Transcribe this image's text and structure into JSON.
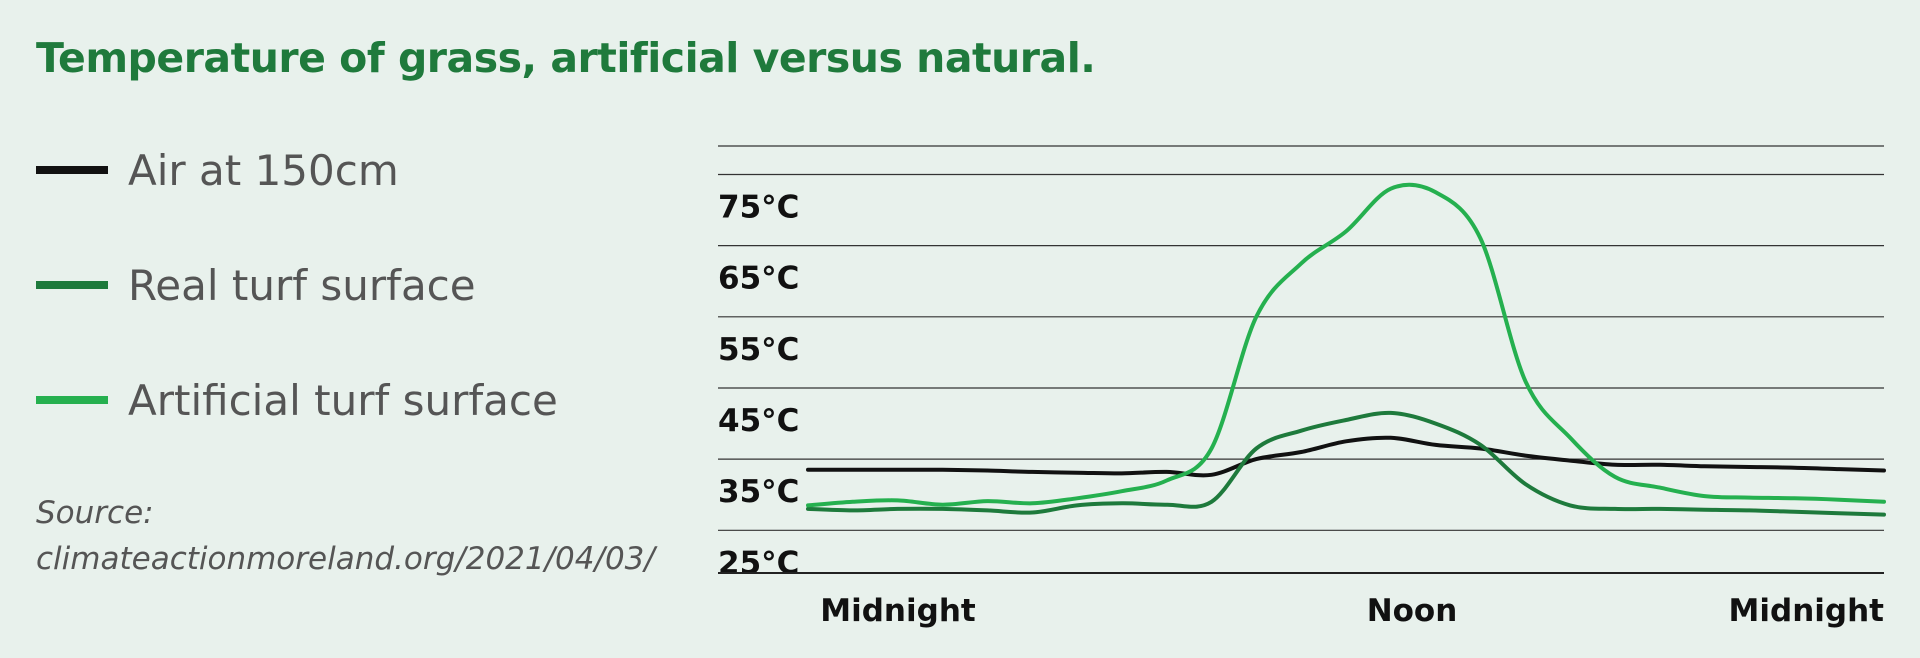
{
  "title": "Temperature of grass, artificial versus natural.",
  "legend": [
    {
      "label": "Air at 150cm",
      "color": "#111111"
    },
    {
      "label": "Real turf surface",
      "color": "#1e7a3c"
    },
    {
      "label": "Artificial turf surface",
      "color": "#25b04f"
    }
  ],
  "source": {
    "line1": "Source:",
    "line2": "climateactionmoreland.org/2021/04/03/"
  },
  "chart_data": {
    "type": "line",
    "xlabel": "",
    "ylabel": "",
    "x_tick_labels": [
      "Midnight",
      "Noon",
      "Midnight"
    ],
    "y_tick_labels": [
      "25°C",
      "35°C",
      "45°C",
      "55°C",
      "65°C",
      "75°C"
    ],
    "y_ticks": [
      25,
      35,
      45,
      55,
      65,
      75
    ],
    "xlim": [
      0,
      24
    ],
    "ylim": [
      19,
      79
    ],
    "grid": true,
    "legend_position": "left",
    "series": [
      {
        "name": "Air at 150cm",
        "color": "#111111",
        "x": [
          0,
          1,
          2,
          3,
          4,
          5,
          6,
          7,
          8,
          9,
          10,
          11,
          12,
          13,
          14,
          15,
          16,
          17,
          18,
          19,
          20,
          21,
          22,
          23,
          24
        ],
        "y": [
          33.5,
          33.5,
          33.5,
          33.5,
          33.4,
          33.2,
          33.1,
          33.0,
          33.2,
          32.8,
          35.0,
          36.0,
          37.5,
          38.0,
          37.0,
          36.5,
          35.5,
          34.8,
          34.2,
          34.2,
          34.0,
          33.9,
          33.8,
          33.6,
          33.4
        ]
      },
      {
        "name": "Real turf surface",
        "color": "#1e7a3c",
        "x": [
          0,
          1,
          2,
          3,
          4,
          5,
          6,
          7,
          8,
          9,
          10,
          11,
          12,
          13,
          14,
          15,
          16,
          17,
          18,
          19,
          20,
          21,
          22,
          23,
          24
        ],
        "y": [
          28.0,
          27.8,
          28.0,
          28.0,
          27.8,
          27.5,
          28.5,
          28.8,
          28.6,
          29.0,
          36.5,
          39.0,
          40.5,
          41.5,
          40.0,
          37.0,
          31.5,
          28.5,
          28.0,
          28.0,
          27.9,
          27.8,
          27.6,
          27.4,
          27.2
        ]
      },
      {
        "name": "Artificial turf surface",
        "color": "#25b04f",
        "x": [
          0,
          1,
          2,
          3,
          4,
          5,
          6,
          7,
          8,
          9,
          10,
          11,
          12,
          13,
          14,
          15,
          16,
          17,
          18,
          19,
          20,
          21,
          22,
          23,
          24
        ],
        "y": [
          28.5,
          29.0,
          29.2,
          28.6,
          29.1,
          28.8,
          29.5,
          30.5,
          32.0,
          36.5,
          55.0,
          62.5,
          67.0,
          73.0,
          72.5,
          66.0,
          46.0,
          38.0,
          32.5,
          31.0,
          29.8,
          29.6,
          29.5,
          29.3,
          29.0
        ]
      }
    ]
  }
}
